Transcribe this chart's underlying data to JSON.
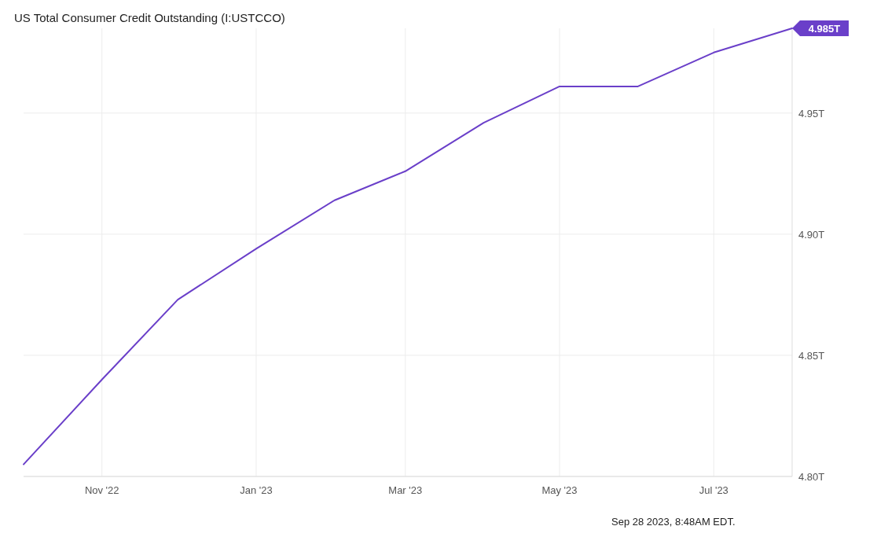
{
  "chart_data": {
    "type": "line",
    "title": "US Total Consumer Credit Outstanding (I:USTCCO)",
    "x": [
      "2022-10-01",
      "2022-11-01",
      "2022-12-01",
      "2023-01-01",
      "2023-02-01",
      "2023-03-01",
      "2023-04-01",
      "2023-05-01",
      "2023-06-01",
      "2023-07-01",
      "2023-08-01"
    ],
    "series": [
      {
        "color": "#6a3fc9",
        "values": [
          4.805,
          4.84,
          4.873,
          4.894,
          4.914,
          4.926,
          4.946,
          4.961,
          4.961,
          4.975,
          4.985
        ],
        "value_labels": [
          null,
          null,
          null,
          null,
          null,
          null,
          null,
          null,
          null,
          null,
          "4.985T"
        ]
      }
    ],
    "xlim": [
      "2022-10-01",
      "2023-08-01"
    ],
    "xticks": [
      {
        "value": "2022-11-01",
        "label": "Nov '22"
      },
      {
        "value": "2023-01-01",
        "label": "Jan '23"
      },
      {
        "value": "2023-03-01",
        "label": "Mar '23"
      },
      {
        "value": "2023-05-01",
        "label": "May '23"
      },
      {
        "value": "2023-07-01",
        "label": "Jul '23"
      }
    ],
    "ylim": [
      4.8,
      4.985
    ],
    "yticks": [
      {
        "value": 4.8,
        "label": "4.80T"
      },
      {
        "value": 4.85,
        "label": "4.85T"
      },
      {
        "value": 4.9,
        "label": "4.90T"
      },
      {
        "value": 4.95,
        "label": "4.95T"
      }
    ],
    "grid": true,
    "annotations": [
      "Sep 28 2023, 8:48AM EDT."
    ]
  }
}
